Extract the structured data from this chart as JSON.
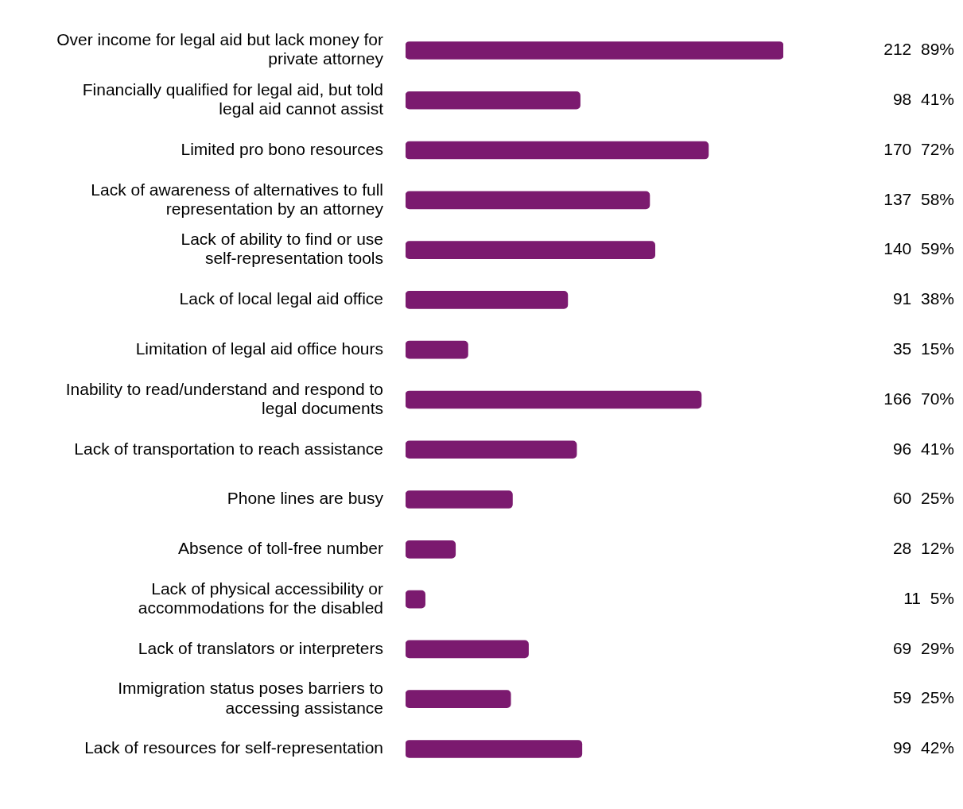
{
  "chart_data": {
    "type": "bar",
    "orientation": "horizontal",
    "color": "#7b1a6f",
    "categories": [
      "Over income for legal aid but lack money for private attorney",
      "Financially qualified for legal aid, but told legal aid cannot assist",
      "Limited pro bono resources",
      "Lack of awareness of alternatives to full representation by an attorney",
      "Lack of ability to find or use self-representation tools",
      "Lack of local legal aid office",
      "Limitation of legal aid office hours",
      "Inability to read/understand and respond to legal documents",
      "Lack of transportation to reach assistance",
      "Phone lines are busy",
      "Absence of toll-free number",
      "Lack of physical accessibility or accommodations for the disabled",
      "Lack of translators or interpreters",
      "Immigration status poses barriers to accessing assistance",
      "Lack of resources for self-representation"
    ],
    "values": [
      212,
      98,
      170,
      137,
      140,
      91,
      35,
      166,
      96,
      60,
      28,
      11,
      69,
      59,
      99
    ],
    "value_labels": [
      "212  89%",
      "98  41%",
      "170  72%",
      "137  58%",
      "140  59%",
      "91  38%",
      "35  15%",
      "166  70%",
      "96  41%",
      "60  25%",
      "28  12%",
      "11  5%",
      "69  29%",
      "59  25%",
      "99  42%"
    ],
    "grid": false,
    "legend": false
  }
}
